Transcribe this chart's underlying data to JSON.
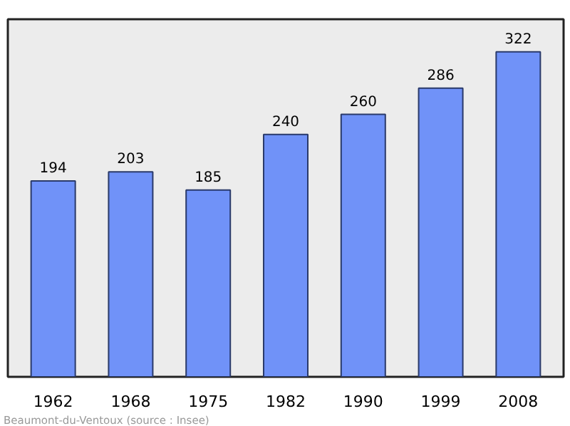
{
  "chart_data": {
    "type": "bar",
    "categories": [
      "1962",
      "1968",
      "1975",
      "1982",
      "1990",
      "1999",
      "2008"
    ],
    "values": [
      194,
      203,
      185,
      240,
      260,
      286,
      322
    ],
    "color": "#7092f8",
    "data_labels": true,
    "grid": false,
    "annotations": [
      "Beaumont-du-Ventoux    (source : Insee)"
    ]
  }
}
